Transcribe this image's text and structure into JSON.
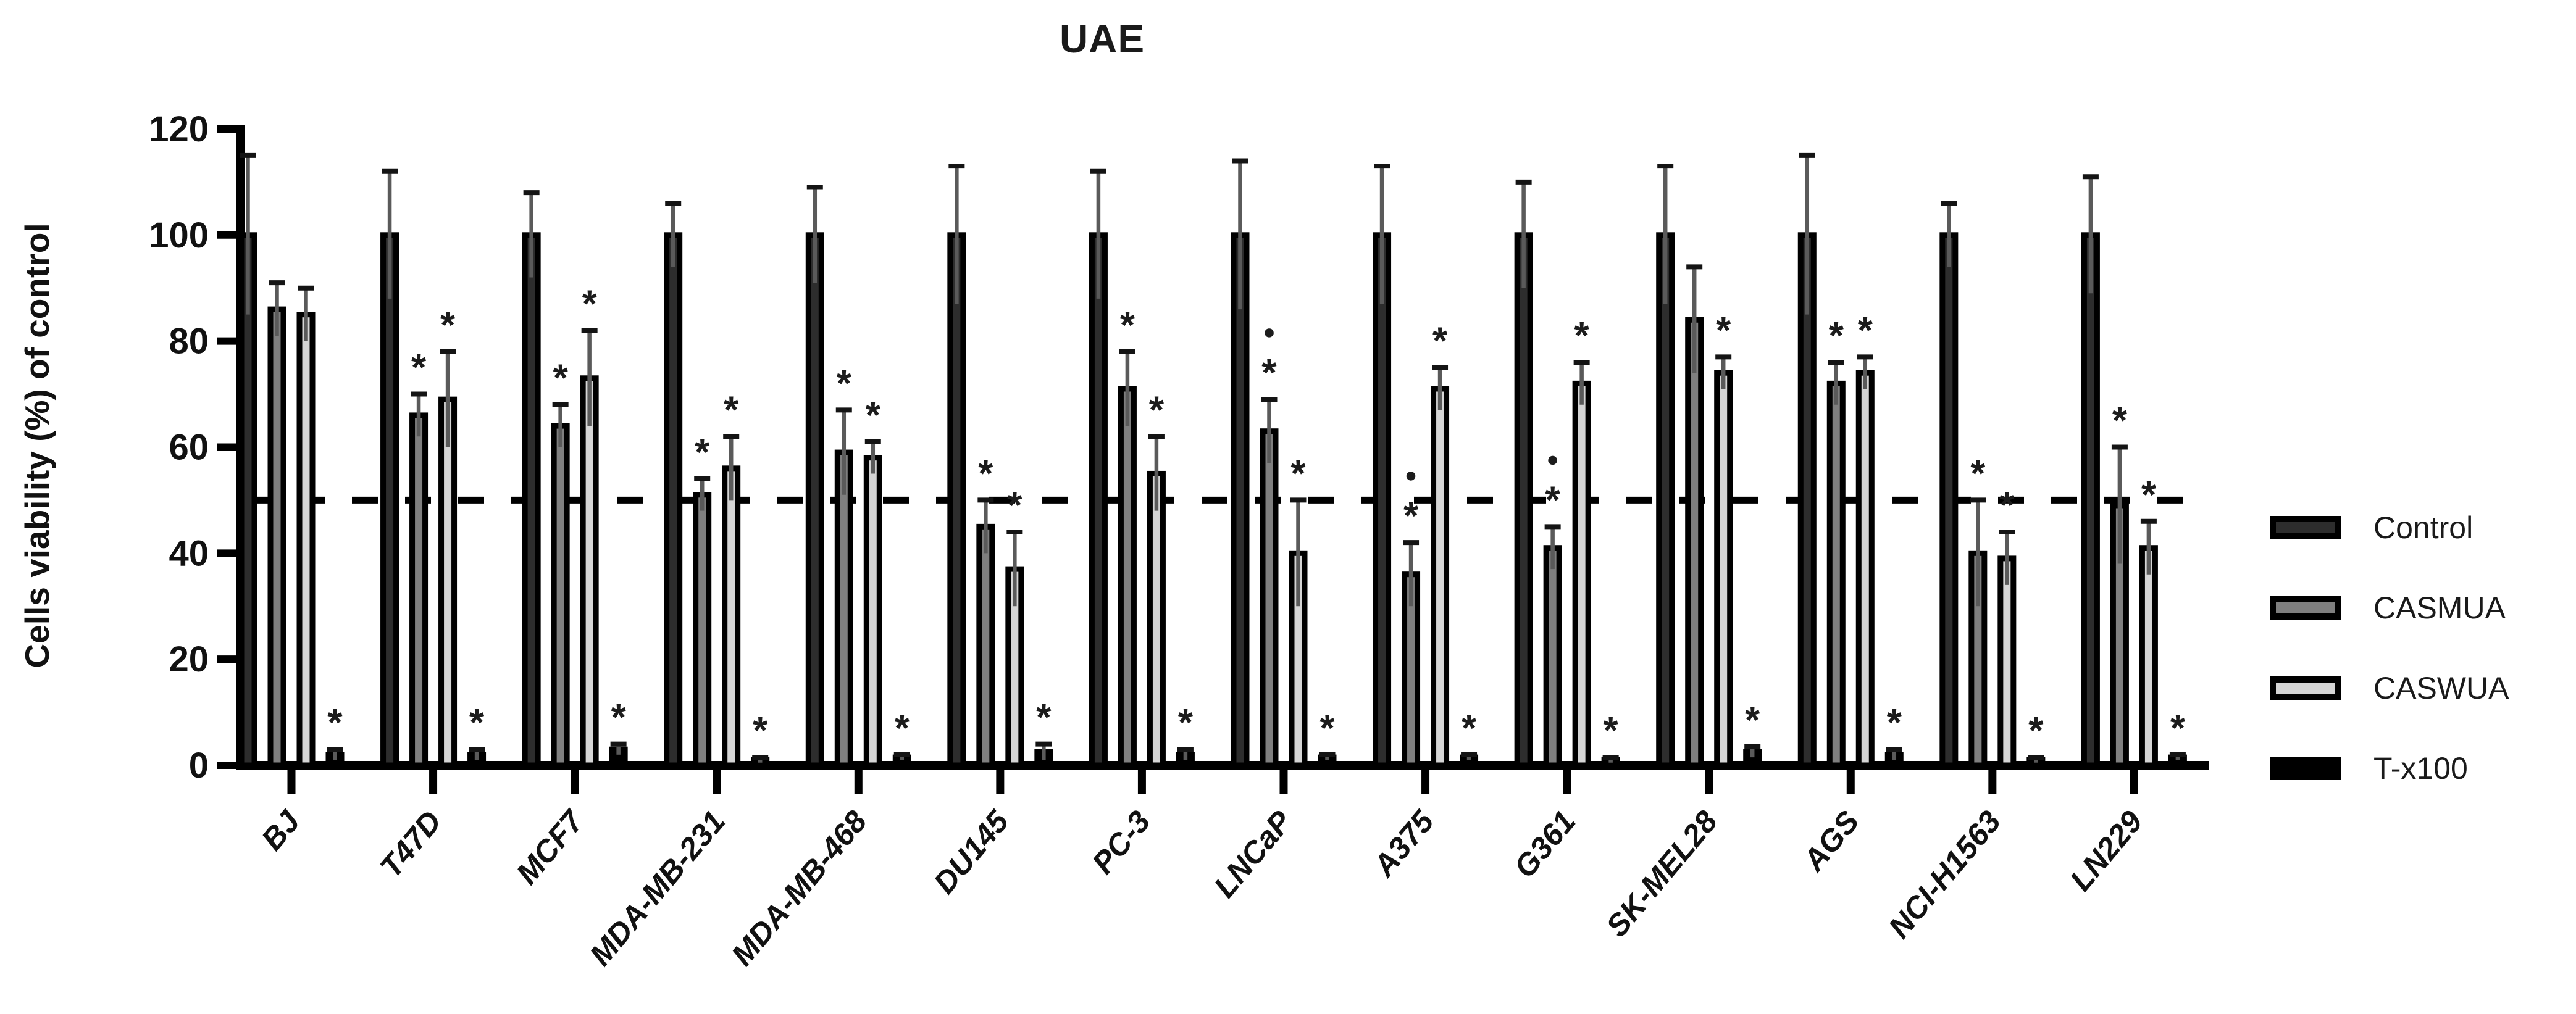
{
  "title": "UAE",
  "y_axis_label": "Cells viability (%) of control",
  "chart_data": {
    "type": "bar",
    "title": "UAE",
    "xlabel": "",
    "ylabel": "Cells viability (%) of control",
    "ylim": [
      0,
      120
    ],
    "yticks": [
      0,
      20,
      40,
      60,
      80,
      100,
      120
    ],
    "grid": "off",
    "reference_line": {
      "y": 50,
      "style": "dashed",
      "color": "#000000"
    },
    "legend_position": "right-outside",
    "error_bars": "sd-upper-cap",
    "significance_symbols": {
      "asterisk": "*",
      "dot": "●"
    },
    "categories": [
      "BJ",
      "T47D",
      "MCF7",
      "MDA-MB-231",
      "MDA-MB-468",
      "DU145",
      "PC-3",
      "LNCaP",
      "A375",
      "G361",
      "SK-MEL28",
      "AGS",
      "NCI-H1563",
      "LN229"
    ],
    "series": [
      {
        "name": "Control",
        "color": "#2d2d2d",
        "values": [
          100,
          100,
          100,
          100,
          100,
          100,
          100,
          100,
          100,
          100,
          100,
          100,
          100,
          100
        ],
        "errors": [
          15,
          12,
          8,
          6,
          9,
          13,
          12,
          14,
          13,
          10,
          13,
          15,
          6,
          11
        ],
        "sig": [
          "",
          "",
          "",
          "",
          "",
          "",
          "",
          "",
          "",
          "",
          "",
          "",
          "",
          ""
        ]
      },
      {
        "name": "CASMUA",
        "color": "#7f7f7f",
        "values": [
          86,
          66,
          64,
          51,
          59,
          45,
          71,
          63,
          36,
          41,
          84,
          72,
          40,
          49
        ],
        "errors": [
          5,
          4,
          4,
          3,
          8,
          5,
          7,
          6,
          6,
          4,
          10,
          4,
          10,
          11
        ],
        "sig": [
          "",
          "*",
          "*",
          "*",
          "*",
          "*",
          "*",
          "●*",
          "●*",
          "●*",
          "",
          "*",
          "*",
          "*"
        ]
      },
      {
        "name": "CASWUA",
        "color": "#d5d5d5",
        "values": [
          85,
          69,
          73,
          56,
          58,
          37,
          55,
          40,
          71,
          72,
          74,
          74,
          39,
          41
        ],
        "errors": [
          5,
          9,
          9,
          6,
          3,
          7,
          7,
          10,
          4,
          4,
          3,
          3,
          5,
          5
        ],
        "sig": [
          "",
          "*",
          "*",
          "*",
          "*",
          "*",
          "*",
          "*",
          "*",
          "*",
          "*",
          "*",
          "*",
          "*"
        ]
      },
      {
        "name": "T-x100",
        "color": "#000000",
        "values": [
          2,
          2,
          3,
          1,
          1.5,
          2.5,
          2,
          1.5,
          1.5,
          1,
          2.5,
          2,
          1,
          1.5
        ],
        "errors": [
          1,
          1,
          1,
          0.5,
          0.5,
          1.5,
          1,
          0.5,
          0.5,
          0.5,
          1,
          1,
          0.5,
          0.5
        ],
        "sig": [
          "*",
          "*",
          "*",
          "*",
          "*",
          "*",
          "*",
          "*",
          "*",
          "*",
          "*",
          "*",
          "*",
          "*"
        ]
      }
    ]
  }
}
